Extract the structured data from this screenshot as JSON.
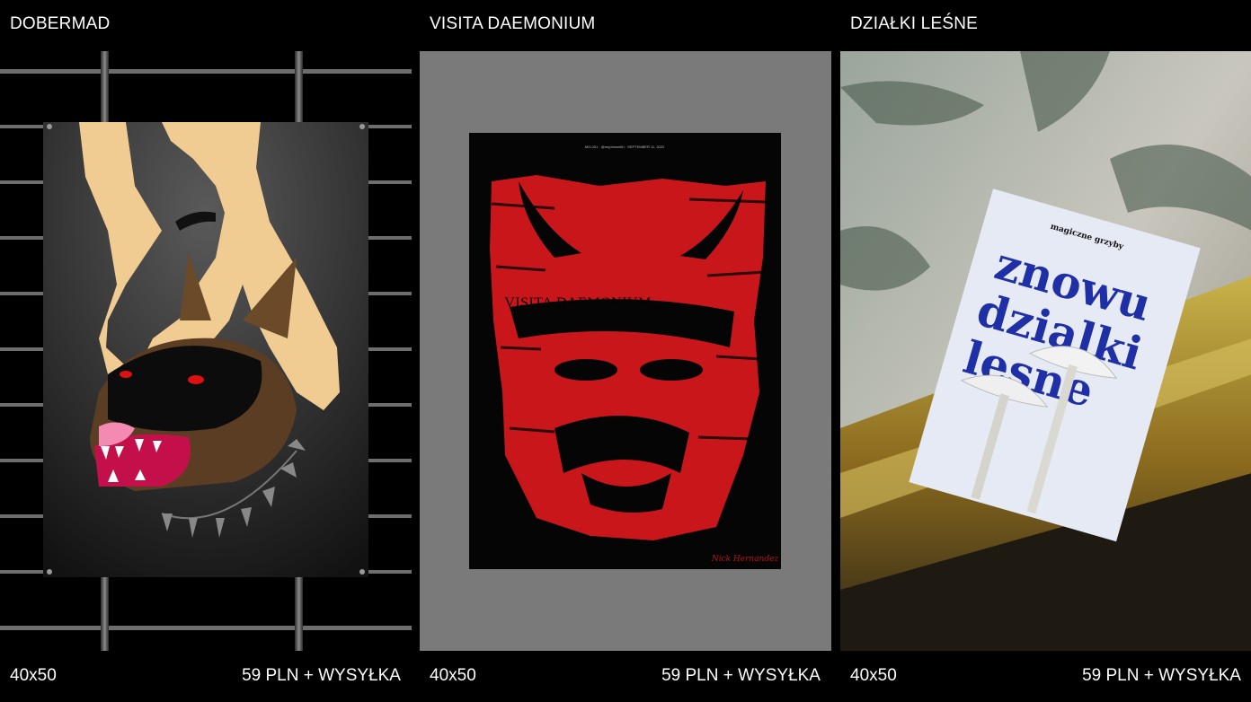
{
  "products": [
    {
      "title": "DOBERMAD",
      "size": "40x50",
      "price": "59 PLN + WYSYŁKA",
      "image_icon": "dobermann-poster-image"
    },
    {
      "title": "VISITA DAEMONIUM",
      "size": "40x50",
      "price": "59 PLN + WYSYŁKA",
      "image_icon": "red-demon-poster-image",
      "poster_text": "VISITA DAEMONIUM",
      "poster_header": "MG-001 · @mrjohnsmith · SEPTEMBER 11, 2022",
      "poster_signature": "Nick Hernandez"
    },
    {
      "title": "DZIAŁKI LEŚNE",
      "size": "40x50",
      "price": "59 PLN + WYSYŁKA",
      "image_icon": "mushroom-poster-photo",
      "poster_brand": "magiczne grzyby",
      "poster_lines": [
        "znowu",
        "dzialki",
        "lesne"
      ]
    }
  ],
  "colors": {
    "background": "#000000",
    "text": "#ffffff",
    "mid_gray": "#7a7a7a",
    "demon_red": "#d8161b",
    "poster_blue": "#1f2fa6"
  }
}
